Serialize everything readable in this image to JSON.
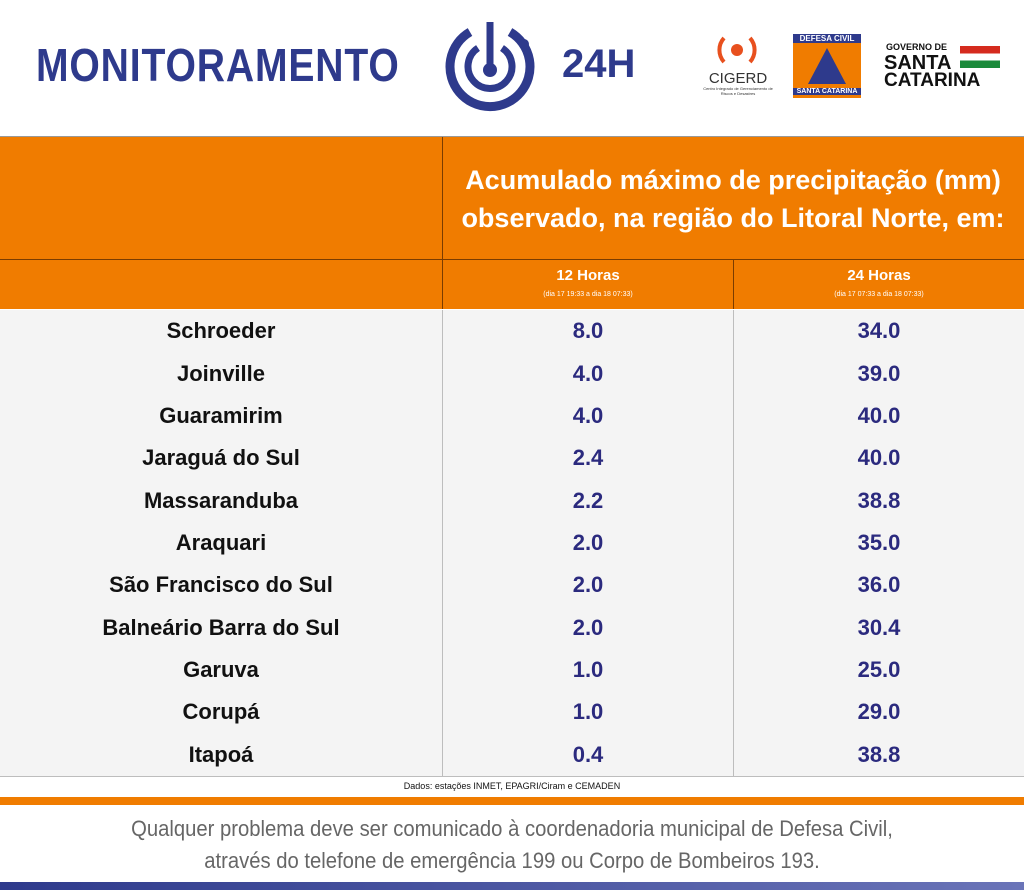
{
  "header": {
    "title": "MONITORAMENTO",
    "badge": "24H",
    "logos": {
      "cigerd": "CIGERD",
      "cigerd_sub": "Centro Integrado de Gerenciamento de Riscos e Desastres",
      "defesa_top": "DEFESA CIVIL",
      "defesa_bottom": "SANTA CATARINA",
      "gov_top": "GOVERNO DE",
      "gov_mid": "SANTA",
      "gov_bottom": "CATARINA"
    }
  },
  "table": {
    "title": "Acumulado máximo de precipitação (mm) observado, na região do Litoral Norte, em:",
    "columns": [
      {
        "label": "12 Horas",
        "period": "(dia 17 19:33 a dia 18 07:33)"
      },
      {
        "label": "24 Horas",
        "period": "(dia 17 07:33 a dia 18 07:33)"
      }
    ],
    "rows": [
      [
        "Schroeder",
        "8.0",
        "34.0"
      ],
      [
        "Joinville",
        "4.0",
        "39.0"
      ],
      [
        "Guaramirim",
        "4.0",
        "40.0"
      ],
      [
        "Jaraguá do Sul",
        "2.4",
        "40.0"
      ],
      [
        "Massaranduba",
        "2.2",
        "38.8"
      ],
      [
        "Araquari",
        "2.0",
        "35.0"
      ],
      [
        "São Francisco do Sul",
        "2.0",
        "36.0"
      ],
      [
        "Balneário Barra do Sul",
        "2.0",
        "30.4"
      ],
      [
        "Garuva",
        "1.0",
        "25.0"
      ],
      [
        "Corupá",
        "1.0",
        "29.0"
      ],
      [
        "Itapoá",
        "0.4",
        "38.8"
      ]
    ],
    "source": "Dados: estações INMET, EPAGRI/Ciram e CEMADEN"
  },
  "footer": {
    "line1": "Qualquer problema deve ser comunicado à coordenadoria municipal de Defesa Civil,",
    "line2": "através do telefone de emergência 199 ou Corpo de Bombeiros 193."
  }
}
